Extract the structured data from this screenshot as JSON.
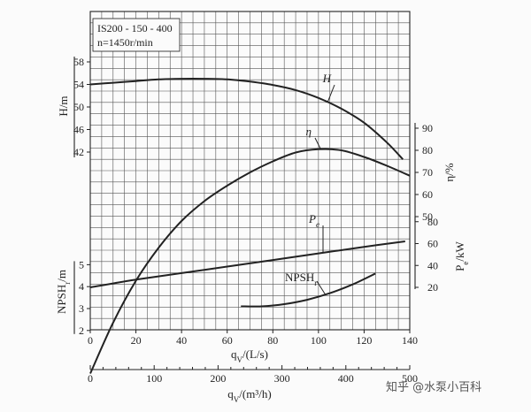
{
  "info_box": {
    "model": "IS200 - 150 - 400",
    "speed": "n=1450r/min"
  },
  "watermark": "知乎 @水泵小百科",
  "chart_data": {
    "type": "line",
    "x_flow_ls": {
      "title": "qV/(L/s)",
      "range": [
        0,
        140
      ],
      "ticks": [
        0,
        20,
        40,
        60,
        80,
        100,
        120,
        140
      ]
    },
    "x_flow_m3h": {
      "title": "qV/(m³/h)",
      "range": [
        0,
        500
      ],
      "ticks": [
        0,
        100,
        200,
        300,
        400,
        500
      ]
    },
    "y_head": {
      "title": "H/m",
      "ticks": [
        42,
        46,
        50,
        54,
        58
      ]
    },
    "y_npsh": {
      "title": "NPSHr/m",
      "ticks": [
        2,
        3,
        4,
        5
      ]
    },
    "y_eff": {
      "title": "η/%",
      "ticks": [
        50,
        60,
        70,
        80,
        90
      ]
    },
    "y_power": {
      "title": "Pe/kW",
      "ticks": [
        20,
        40,
        60,
        80
      ]
    },
    "series": [
      {
        "name": "H",
        "axis": "y_head",
        "x": [
          0,
          10,
          20,
          30,
          40,
          50,
          60,
          70,
          80,
          90,
          100,
          110,
          120,
          130,
          137
        ],
        "y": [
          54.0,
          54.3,
          54.6,
          54.9,
          55.0,
          55.0,
          54.9,
          54.5,
          53.9,
          53.0,
          51.6,
          49.7,
          47.2,
          43.7,
          40.7
        ]
      },
      {
        "name": "η",
        "axis": "y_eff",
        "x": [
          0,
          10,
          20,
          30,
          40,
          50,
          60,
          70,
          80,
          90,
          100,
          110,
          120,
          130,
          140
        ],
        "y": [
          -21,
          2,
          21,
          36,
          48,
          57,
          64,
          70,
          75,
          79,
          80.5,
          80,
          77,
          73,
          68.5
        ]
      },
      {
        "name": "Pe",
        "axis": "y_power",
        "x": [
          0,
          20,
          40,
          60,
          80,
          100,
          120,
          138
        ],
        "y": [
          20,
          27,
          33,
          39,
          45,
          51,
          57,
          62
        ]
      },
      {
        "name": "NPSHr",
        "axis": "y_npsh",
        "x": [
          66,
          75,
          85,
          95,
          105,
          115,
          125
        ],
        "y": [
          3.1,
          3.1,
          3.2,
          3.4,
          3.7,
          4.1,
          4.6
        ]
      }
    ]
  }
}
